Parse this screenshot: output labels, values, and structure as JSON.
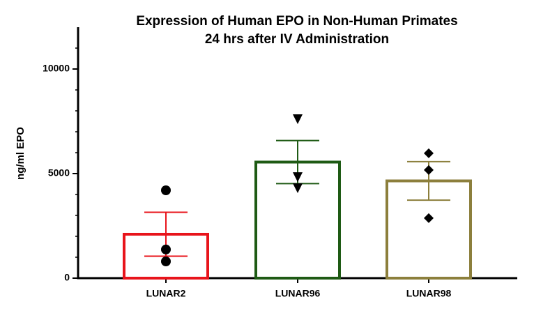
{
  "chart_data": {
    "type": "bar",
    "title": [
      "Expression of Human EPO in Non-Human Primates",
      "24 hrs after IV Administration"
    ],
    "y_label": "ng/ml EPO",
    "categories": [
      "LUNAR2",
      "LUNAR96",
      "LUNAR98"
    ],
    "values": [
      2100,
      5550,
      4650
    ],
    "errors": [
      1050,
      1030,
      920
    ],
    "points": [
      [
        4200,
        1370,
        800
      ],
      [
        7600,
        4830,
        4300
      ],
      [
        5970,
        5170,
        2870
      ]
    ],
    "colors": [
      "#e8141b",
      "#1e5a14",
      "#8c7f3c"
    ],
    "markers": [
      "circle",
      "triangle-down",
      "diamond"
    ],
    "ylim": [
      0,
      12000
    ],
    "yticks": [
      0,
      5000,
      10000
    ]
  }
}
